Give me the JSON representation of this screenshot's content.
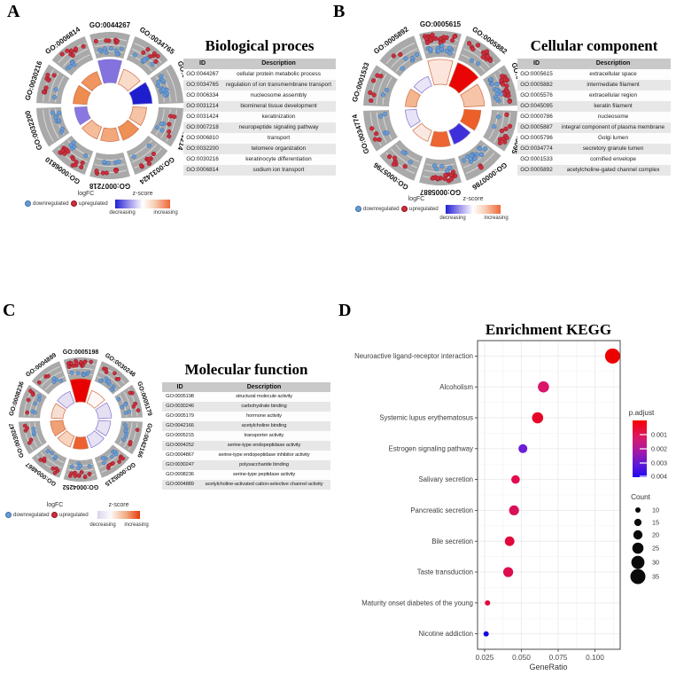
{
  "figure": {
    "panels": [
      {
        "letter": "A",
        "table_title": "Biological proces",
        "table_headers": [
          "ID",
          "Description"
        ]
      },
      {
        "letter": "B",
        "table_title": "Cellular component",
        "table_headers": [
          "ID",
          "Description"
        ]
      },
      {
        "letter": "C",
        "table_title": "Molecular function",
        "table_headers": [
          "ID",
          "Description"
        ]
      },
      {
        "letter": "D",
        "title": "Enrichment KEGG"
      }
    ],
    "circle_legend": {
      "logfc_title": "logFC",
      "down_label": "downregulated",
      "up_label": "upregulated",
      "zscore_title": "z-score",
      "decreasing_label": "decreasing",
      "increasing_label": "increasing"
    },
    "colors": {
      "up_dot": "#c9303c",
      "down_dot": "#6b9bd3",
      "sector_gray": "#a9a9a9"
    }
  },
  "chart_data": [
    {
      "type": "circular-go-plot",
      "panel": "A",
      "title": "Biological proces",
      "zscore_gradient": [
        "#2121d4",
        "#ffffff",
        "#ee6737"
      ],
      "sectors": [
        {
          "id": "GO:0044267",
          "description": "cellular protein metabolic process",
          "z_color": "#8472de",
          "bar": 1.0,
          "up": 6,
          "down": 9
        },
        {
          "id": "GO:0034765",
          "description": "regulation of ion transmembrane transport",
          "z_color": "#f8dcc9",
          "bar": 0.62,
          "up": 7,
          "down": 7
        },
        {
          "id": "GO:0006334",
          "description": "nucleosome assembly",
          "z_color": "#1e1ecd",
          "bar": 0.8,
          "up": 0,
          "down": 16
        },
        {
          "id": "GO:0031214",
          "description": "biomineral tissue development",
          "z_color": "#f6c3a4",
          "bar": 0.5,
          "up": 5,
          "down": 4
        },
        {
          "id": "GO:0031424",
          "description": "keratinization",
          "z_color": "#ef9057",
          "bar": 0.52,
          "up": 8,
          "down": 2
        },
        {
          "id": "GO:0007218",
          "description": "neuropeptide signaling pathway",
          "z_color": "#f3a87c",
          "bar": 0.45,
          "up": 7,
          "down": 5
        },
        {
          "id": "GO:0006810",
          "description": "transport",
          "z_color": "#f6bd9a",
          "bar": 0.45,
          "up": 15,
          "down": 6
        },
        {
          "id": "GO:0032200",
          "description": "telomere organization",
          "z_color": "#8a78e0",
          "bar": 0.42,
          "up": 0,
          "down": 9
        },
        {
          "id": "GO:0030216",
          "description": "keratinocyte differentiation",
          "z_color": "#ee8c50",
          "bar": 0.5,
          "up": 9,
          "down": 2
        },
        {
          "id": "GO:0006814",
          "description": "sodium ion transport",
          "z_color": "#f0955f",
          "bar": 0.48,
          "up": 9,
          "down": 5
        }
      ]
    },
    {
      "type": "circular-go-plot",
      "panel": "B",
      "title": "Cellular component",
      "zscore_gradient": [
        "#2121d4",
        "#ffffff",
        "#ee6737"
      ],
      "sectors": [
        {
          "id": "GO:0005615",
          "description": "extracellular space",
          "z_color": "#fce5dc",
          "bar": 1.0,
          "up": 22,
          "down": 15
        },
        {
          "id": "GO:0005882",
          "description": "intermediate filament",
          "z_color": "#e90505",
          "bar": 1.0,
          "up": 14,
          "down": 2
        },
        {
          "id": "GO:0005576",
          "description": "extracellular region",
          "z_color": "#f6c5a9",
          "bar": 0.78,
          "up": 22,
          "down": 16
        },
        {
          "id": "GO:0045095",
          "description": "keratin filament",
          "z_color": "#ed5f28",
          "bar": 0.6,
          "up": 10,
          "down": 2
        },
        {
          "id": "GO:0000786",
          "description": "nucleosome",
          "z_color": "#3e2fd9",
          "bar": 0.5,
          "up": 2,
          "down": 14
        },
        {
          "id": "GO:0005887",
          "description": "integral component of plasma membrane",
          "z_color": "#ed6534",
          "bar": 0.5,
          "up": 18,
          "down": 5
        },
        {
          "id": "GO:0005796",
          "description": "Golgi lumen",
          "z_color": "#fae9e1",
          "bar": 0.35,
          "up": 6,
          "down": 3
        },
        {
          "id": "GO:0034774",
          "description": "secretory granule lumen",
          "z_color": "#e8e3f6",
          "bar": 0.33,
          "up": 4,
          "down": 4
        },
        {
          "id": "GO:0001533",
          "description": "cornified envelope",
          "z_color": "#f3b68f",
          "bar": 0.33,
          "up": 6,
          "down": 2
        },
        {
          "id": "GO:0005892",
          "description": "acetylcholine-gated channel complex",
          "z_color": "#eae5f7",
          "bar": 0.28,
          "up": 2,
          "down": 5
        }
      ]
    },
    {
      "type": "circular-go-plot",
      "panel": "C",
      "title": "Molecular function",
      "zscore_gradient": [
        "#d9d3ee",
        "#ffffff",
        "#e5380f"
      ],
      "sectors": [
        {
          "id": "GO:0005198",
          "description": "structural molecule activity",
          "z_color": "#e90000",
          "bar": 1.0,
          "up": 20,
          "down": 7
        },
        {
          "id": "GO:0030246",
          "description": "carbohydrate binding",
          "z_color": "#fdf8f5",
          "bar": 0.5,
          "up": 6,
          "down": 9
        },
        {
          "id": "GO:0005179",
          "description": "hormone activity",
          "z_color": "#e6e0f3",
          "bar": 0.5,
          "up": 5,
          "down": 6
        },
        {
          "id": "GO:0042166",
          "description": "acetylcholine binding",
          "z_color": "#e7e2f4",
          "bar": 0.45,
          "up": 3,
          "down": 6
        },
        {
          "id": "GO:0005215",
          "description": "transporter activity",
          "z_color": "#e7e2f4",
          "bar": 0.45,
          "up": 9,
          "down": 7
        },
        {
          "id": "GO:0004252",
          "description": "serine-type endopeptidase activity",
          "z_color": "#ec6031",
          "bar": 0.42,
          "up": 11,
          "down": 5
        },
        {
          "id": "GO:0004867",
          "description": "serine-type endopeptidase inhibitor activity",
          "z_color": "#f8d3be",
          "bar": 0.42,
          "up": 8,
          "down": 4
        },
        {
          "id": "GO:0030247",
          "description": "polysaccharide binding",
          "z_color": "#f1a177",
          "bar": 0.46,
          "up": 5,
          "down": 3
        },
        {
          "id": "GO:0008236",
          "description": "serine-type peptidase activity",
          "z_color": "#f6dfd2",
          "bar": 0.42,
          "up": 5,
          "down": 5
        },
        {
          "id": "GO:0004889",
          "description": "acetylcholine-activated cation-selective channel activity",
          "z_color": "#e6e0f3",
          "bar": 0.45,
          "up": 3,
          "down": 4
        }
      ]
    },
    {
      "type": "scatter",
      "panel": "D",
      "title": "Enrichment KEGG",
      "xlabel": "GeneRatio",
      "x_tick_labels": [
        "0.025",
        "0.050",
        "0.075",
        "0.100"
      ],
      "x_ticks": [
        0.025,
        0.05,
        0.075,
        0.1
      ],
      "xlim": [
        0.0205,
        0.118
      ],
      "categories": [
        "Neuroactive ligand-receptor interaction",
        "Alcoholism",
        "Systemic lupus erythematosus",
        "Estrogen signaling pathway",
        "Salivary secretion",
        "Pancreatic secretion",
        "Bile secretion",
        "Taste transduction",
        "Maturity onset diabetes of the young",
        "Nicotine addiction"
      ],
      "gene_ratio": [
        0.112,
        0.065,
        0.061,
        0.051,
        0.046,
        0.045,
        0.042,
        0.041,
        0.027,
        0.026
      ],
      "count": [
        35,
        25,
        25,
        19,
        18,
        22,
        21,
        22,
        10,
        10
      ],
      "dot_colors": [
        "#ec0000",
        "#d9166a",
        "#e60428",
        "#6b1fd6",
        "#e30a4e",
        "#da105a",
        "#e2063a",
        "#dc0c4e",
        "#e0083e",
        "#1708e0"
      ],
      "legend": {
        "p_adjust_title": "p.adjust",
        "p_adjust_ticks": [
          "0.001",
          "0.002",
          "0.003",
          "0.004"
        ],
        "count_title": "Count",
        "count_sizes": [
          10,
          15,
          20,
          25,
          30,
          35
        ]
      }
    }
  ]
}
